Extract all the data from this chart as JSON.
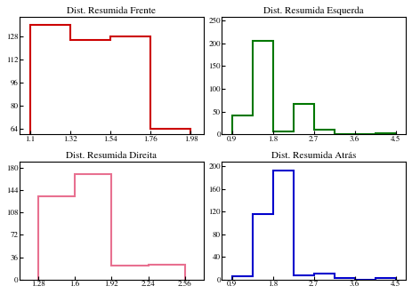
{
  "subplots": [
    {
      "title": "Dist. Resumida Frente",
      "color": "#cc0000",
      "bin_edges": [
        1.1,
        1.32,
        1.54,
        1.76,
        1.98
      ],
      "counts": [
        136,
        126,
        128,
        64
      ],
      "xlim": [
        1.04,
        2.05
      ],
      "ylim": [
        60,
        142
      ],
      "yticks": [
        64,
        80,
        96,
        112,
        128
      ],
      "xticks": [
        1.1,
        1.32,
        1.54,
        1.76,
        1.98
      ]
    },
    {
      "title": "Dist. Resumida Esquerda",
      "color": "#007700",
      "bin_edges": [
        0.9,
        1.35,
        1.8,
        2.25,
        2.7,
        3.15,
        3.6,
        4.05,
        4.5
      ],
      "counts": [
        42,
        205,
        7,
        67,
        10,
        0,
        0,
        2
      ],
      "xlim": [
        0.675,
        4.725
      ],
      "ylim": [
        0,
        258
      ],
      "yticks": [
        0,
        50,
        100,
        150,
        200,
        250
      ],
      "xticks": [
        0.9,
        1.8,
        2.7,
        3.6,
        4.5
      ]
    },
    {
      "title": "Dist. Resumida Direita",
      "color": "#e87090",
      "bin_edges": [
        1.28,
        1.6,
        1.92,
        2.24,
        2.56
      ],
      "counts": [
        134,
        170,
        22,
        24
      ],
      "xlim": [
        1.12,
        2.72
      ],
      "ylim": [
        0,
        190
      ],
      "yticks": [
        0,
        36,
        72,
        108,
        144,
        180
      ],
      "xticks": [
        1.28,
        1.6,
        1.92,
        2.24,
        2.56
      ]
    },
    {
      "title": "Dist. Resumida Atrás",
      "color": "#0000cc",
      "bin_edges": [
        0.9,
        1.35,
        1.8,
        2.25,
        2.7,
        3.15,
        3.6,
        4.05,
        4.5
      ],
      "counts": [
        5,
        115,
        192,
        8,
        10,
        2,
        0,
        2
      ],
      "xlim": [
        0.675,
        4.725
      ],
      "ylim": [
        0,
        208
      ],
      "yticks": [
        0,
        40,
        80,
        120,
        160,
        200
      ],
      "xticks": [
        0.9,
        1.8,
        2.7,
        3.6,
        4.5
      ]
    }
  ],
  "figsize": [
    4.63,
    3.31
  ],
  "dpi": 100
}
